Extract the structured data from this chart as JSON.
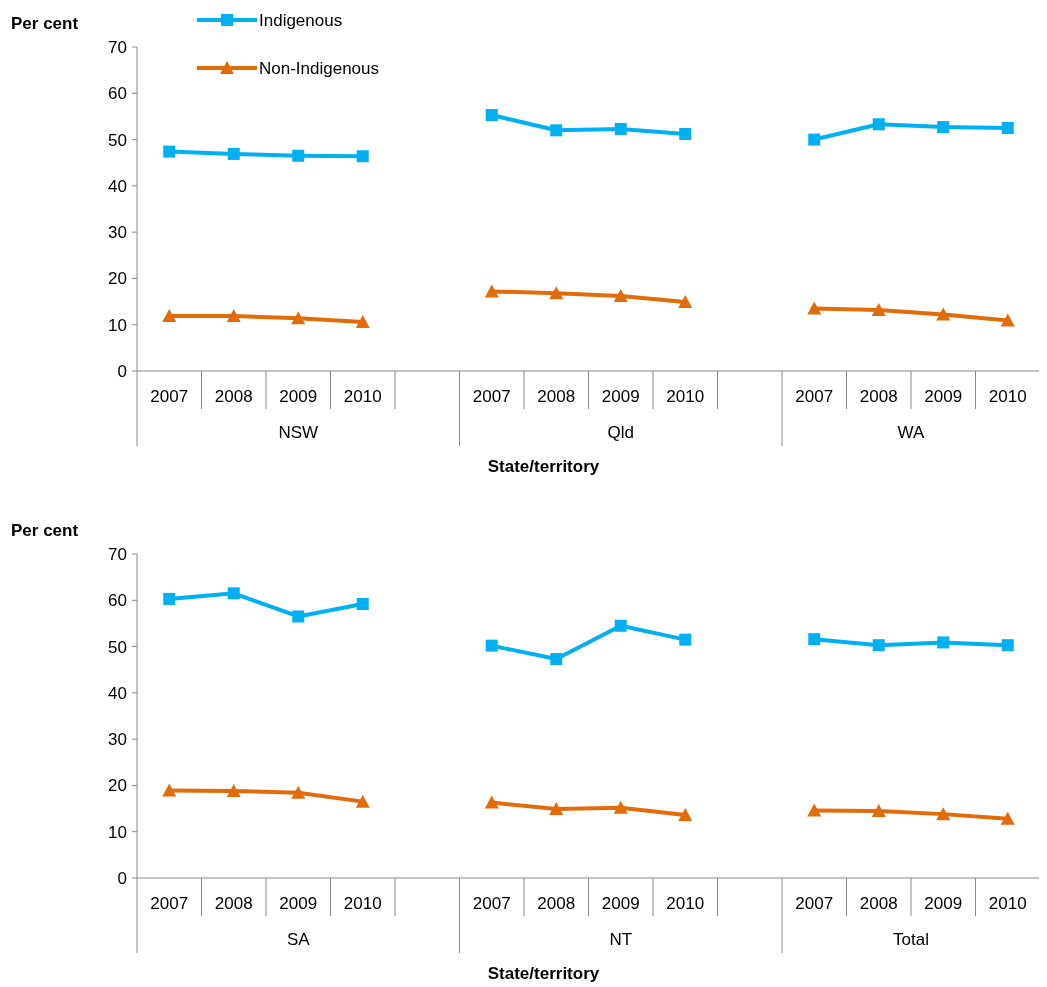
{
  "chart_data": [
    {
      "type": "line",
      "ylabel": "Per cent",
      "xlabel": "State/territory",
      "legend": "top left",
      "grid": false,
      "ylim": [
        0,
        70
      ],
      "yticks": [
        0,
        10,
        20,
        30,
        40,
        50,
        60,
        70
      ],
      "categories": [
        "2007",
        "2008",
        "2009",
        "2010",
        null,
        "2007",
        "2008",
        "2009",
        "2010",
        null,
        "2007",
        "2008",
        "2009",
        "2010"
      ],
      "annotations": [
        "NSW",
        "Qld",
        "WA"
      ],
      "series": [
        {
          "name": "Indigenous",
          "color": "#00b0f0",
          "marker": "square",
          "values": [
            47.4,
            46.9,
            46.5,
            46.4,
            null,
            55.3,
            52.0,
            52.3,
            51.2,
            null,
            50.0,
            53.3,
            52.7,
            52.5
          ]
        },
        {
          "name": "Non-Indigenous",
          "color": "#e36c0a",
          "marker": "triangle",
          "values": [
            11.9,
            11.9,
            11.4,
            10.6,
            null,
            17.2,
            16.8,
            16.2,
            14.9,
            null,
            13.5,
            13.2,
            12.2,
            10.9
          ]
        }
      ]
    },
    {
      "type": "line",
      "ylabel": "Per cent",
      "xlabel": "State/territory",
      "grid": false,
      "ylim": [
        0,
        70
      ],
      "yticks": [
        0,
        10,
        20,
        30,
        40,
        50,
        60,
        70
      ],
      "categories": [
        "2007",
        "2008",
        "2009",
        "2010",
        null,
        "2007",
        "2008",
        "2009",
        "2010",
        null,
        "2007",
        "2008",
        "2009",
        "2010"
      ],
      "annotations": [
        "SA",
        "NT",
        "Total"
      ],
      "series": [
        {
          "color": "#00b0f0",
          "marker": "square",
          "values": [
            60.3,
            61.5,
            56.5,
            59.2,
            null,
            50.2,
            47.3,
            54.5,
            51.5,
            null,
            51.6,
            50.3,
            50.9,
            50.3
          ]
        },
        {
          "color": "#e36c0a",
          "marker": "triangle",
          "values": [
            18.9,
            18.8,
            18.4,
            16.5,
            null,
            16.3,
            14.9,
            15.2,
            13.6,
            null,
            14.6,
            14.5,
            13.8,
            12.8
          ]
        }
      ]
    }
  ]
}
